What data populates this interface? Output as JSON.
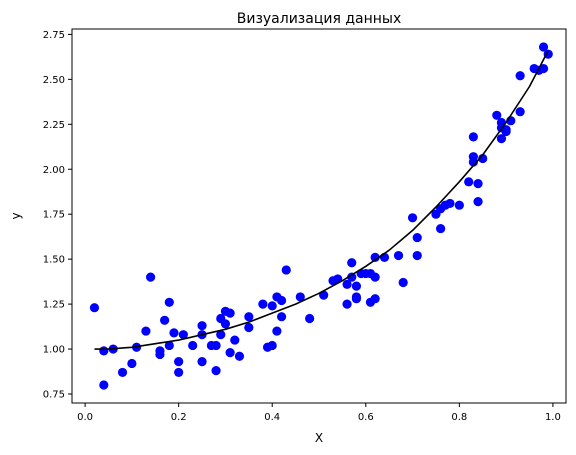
{
  "chart_data": {
    "type": "scatter",
    "title": "Визуализация данных",
    "xlabel": "X",
    "ylabel": "y",
    "xlim": [
      -0.028,
      1.028
    ],
    "ylim": [
      0.7,
      2.78
    ],
    "xticks": [
      0.0,
      0.2,
      0.4,
      0.6,
      0.8,
      1.0
    ],
    "xtick_labels": [
      "0.0",
      "0.2",
      "0.4",
      "0.6",
      "0.8",
      "1.0"
    ],
    "yticks": [
      0.75,
      1.0,
      1.25,
      1.5,
      1.75,
      2.0,
      2.25,
      2.5,
      2.75
    ],
    "ytick_labels": [
      "0.75",
      "1.00",
      "1.25",
      "1.50",
      "1.75",
      "2.00",
      "2.25",
      "2.50",
      "2.75"
    ],
    "grid": false,
    "colors": {
      "points": "#0000ff",
      "curve": "#000000"
    },
    "series": [
      {
        "kind": "scatter",
        "points": [
          [
            0.02,
            1.23
          ],
          [
            0.04,
            0.99
          ],
          [
            0.04,
            0.8
          ],
          [
            0.06,
            1.0
          ],
          [
            0.08,
            0.87
          ],
          [
            0.1,
            0.92
          ],
          [
            0.11,
            1.01
          ],
          [
            0.13,
            1.1
          ],
          [
            0.14,
            1.4
          ],
          [
            0.16,
            0.97
          ],
          [
            0.16,
            0.99
          ],
          [
            0.17,
            1.16
          ],
          [
            0.18,
            1.26
          ],
          [
            0.18,
            1.02
          ],
          [
            0.19,
            1.09
          ],
          [
            0.2,
            0.93
          ],
          [
            0.2,
            0.87
          ],
          [
            0.21,
            1.08
          ],
          [
            0.23,
            1.02
          ],
          [
            0.25,
            1.13
          ],
          [
            0.25,
            1.08
          ],
          [
            0.25,
            0.93
          ],
          [
            0.27,
            1.02
          ],
          [
            0.28,
            1.02
          ],
          [
            0.28,
            0.88
          ],
          [
            0.29,
            1.17
          ],
          [
            0.29,
            1.08
          ],
          [
            0.3,
            1.21
          ],
          [
            0.3,
            1.14
          ],
          [
            0.31,
            1.2
          ],
          [
            0.31,
            0.98
          ],
          [
            0.32,
            1.05
          ],
          [
            0.33,
            0.96
          ],
          [
            0.35,
            1.18
          ],
          [
            0.35,
            1.12
          ],
          [
            0.38,
            1.25
          ],
          [
            0.39,
            1.01
          ],
          [
            0.4,
            1.02
          ],
          [
            0.4,
            1.24
          ],
          [
            0.41,
            1.1
          ],
          [
            0.41,
            1.29
          ],
          [
            0.42,
            1.18
          ],
          [
            0.42,
            1.27
          ],
          [
            0.43,
            1.44
          ],
          [
            0.46,
            1.29
          ],
          [
            0.48,
            1.17
          ],
          [
            0.51,
            1.3
          ],
          [
            0.53,
            1.38
          ],
          [
            0.54,
            1.39
          ],
          [
            0.56,
            1.25
          ],
          [
            0.56,
            1.36
          ],
          [
            0.57,
            1.48
          ],
          [
            0.57,
            1.4
          ],
          [
            0.58,
            1.35
          ],
          [
            0.58,
            1.28
          ],
          [
            0.58,
            1.29
          ],
          [
            0.59,
            1.42
          ],
          [
            0.6,
            1.42
          ],
          [
            0.61,
            1.42
          ],
          [
            0.61,
            1.26
          ],
          [
            0.62,
            1.51
          ],
          [
            0.62,
            1.4
          ],
          [
            0.62,
            1.28
          ],
          [
            0.64,
            1.51
          ],
          [
            0.67,
            1.52
          ],
          [
            0.68,
            1.37
          ],
          [
            0.7,
            1.73
          ],
          [
            0.71,
            1.62
          ],
          [
            0.71,
            1.52
          ],
          [
            0.75,
            1.75
          ],
          [
            0.76,
            1.78
          ],
          [
            0.76,
            1.67
          ],
          [
            0.77,
            1.8
          ],
          [
            0.78,
            1.81
          ],
          [
            0.8,
            1.8
          ],
          [
            0.82,
            1.93
          ],
          [
            0.83,
            2.07
          ],
          [
            0.83,
            2.04
          ],
          [
            0.83,
            2.18
          ],
          [
            0.84,
            1.82
          ],
          [
            0.84,
            1.92
          ],
          [
            0.85,
            2.06
          ],
          [
            0.88,
            2.3
          ],
          [
            0.89,
            2.23
          ],
          [
            0.89,
            2.17
          ],
          [
            0.89,
            2.26
          ],
          [
            0.9,
            2.21
          ],
          [
            0.9,
            2.22
          ],
          [
            0.91,
            2.27
          ],
          [
            0.93,
            2.52
          ],
          [
            0.93,
            2.32
          ],
          [
            0.96,
            2.56
          ],
          [
            0.97,
            2.55
          ],
          [
            0.98,
            2.56
          ],
          [
            0.98,
            2.68
          ],
          [
            0.99,
            2.64
          ]
        ]
      },
      {
        "kind": "line",
        "x": [
          0.02,
          0.05,
          0.1,
          0.15,
          0.2,
          0.25,
          0.3,
          0.35,
          0.4,
          0.45,
          0.5,
          0.55,
          0.6,
          0.65,
          0.7,
          0.75,
          0.8,
          0.85,
          0.9,
          0.95,
          0.99
        ],
        "y": [
          1.0,
          1.0,
          1.01,
          1.03,
          1.05,
          1.08,
          1.11,
          1.15,
          1.2,
          1.25,
          1.31,
          1.38,
          1.46,
          1.55,
          1.66,
          1.79,
          1.93,
          2.08,
          2.26,
          2.46,
          2.66
        ]
      }
    ]
  }
}
